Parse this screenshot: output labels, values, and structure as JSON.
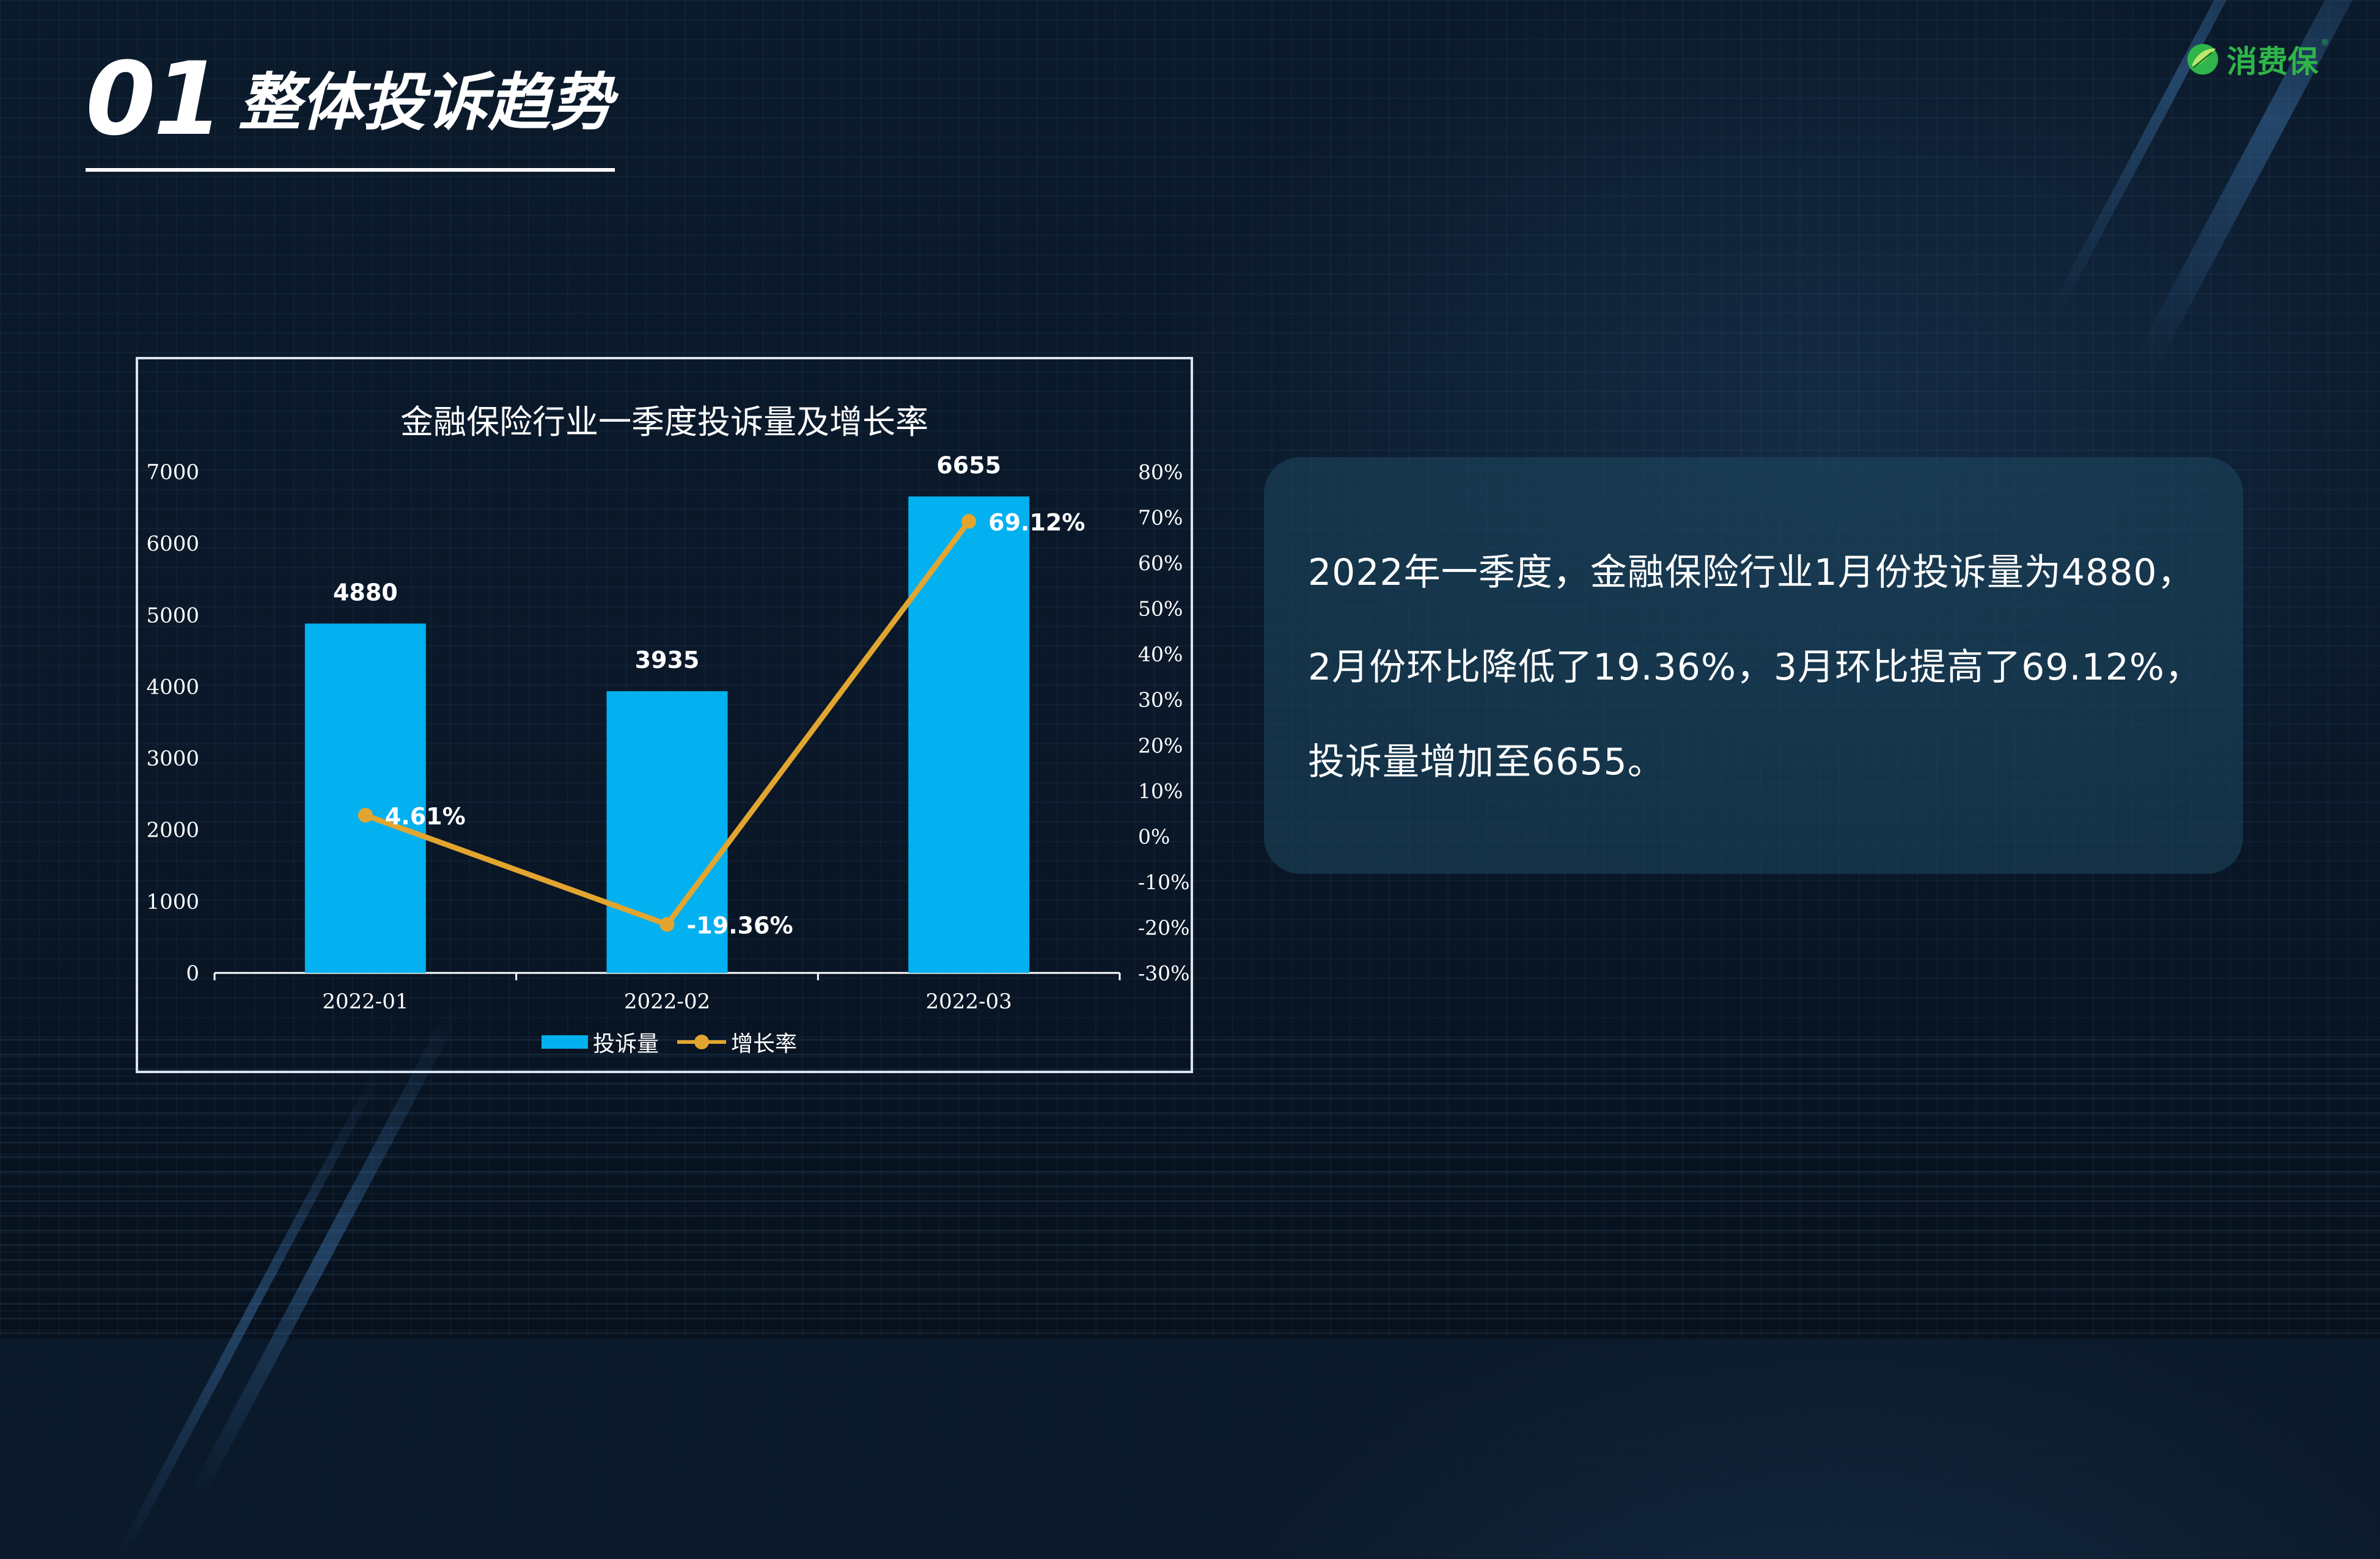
{
  "header": {
    "section_number": "01",
    "section_title": "整体投诉趋势"
  },
  "logo": {
    "brand_name": "消费保",
    "registered_mark": "®",
    "brand_color": "#2fb54a"
  },
  "chart_data": {
    "type": "bar",
    "title": "金融保险行业一季度投诉量及增长率",
    "categories": [
      "2022-01",
      "2022-02",
      "2022-03"
    ],
    "series": [
      {
        "name": "投诉量",
        "type": "bar",
        "axis": "left",
        "values": [
          4880,
          3935,
          6655
        ],
        "labels": [
          "4880",
          "3935",
          "6655"
        ],
        "color": "#03b0f0"
      },
      {
        "name": "增长率",
        "type": "line",
        "axis": "right",
        "values": [
          4.61,
          -19.36,
          69.12
        ],
        "labels": [
          "4.61%",
          "-19.36%",
          "69.12%"
        ],
        "color": "#e2a530"
      }
    ],
    "left_axis": {
      "ylim": [
        0,
        7000
      ],
      "ticks": [
        0,
        1000,
        2000,
        3000,
        4000,
        5000,
        6000,
        7000
      ],
      "tick_labels": [
        "0",
        "1000",
        "2000",
        "3000",
        "4000",
        "5000",
        "6000",
        "7000"
      ]
    },
    "right_axis": {
      "ylim": [
        -30,
        80
      ],
      "ticks": [
        -30,
        -20,
        -10,
        0,
        10,
        20,
        30,
        40,
        50,
        60,
        70,
        80
      ],
      "tick_labels": [
        "-30%",
        "-20%",
        "-10%",
        "0%",
        "10%",
        "20%",
        "30%",
        "40%",
        "50%",
        "60%",
        "70%",
        "80%"
      ]
    },
    "legend_position": "bottom",
    "grid": false
  },
  "summary": {
    "lines": [
      "2022年一季度，金融保险行业1月份投诉量为4880，",
      "2月份环比降低了19.36%，3月环比提高了69.12%，",
      "投诉量增加至6655。"
    ]
  }
}
